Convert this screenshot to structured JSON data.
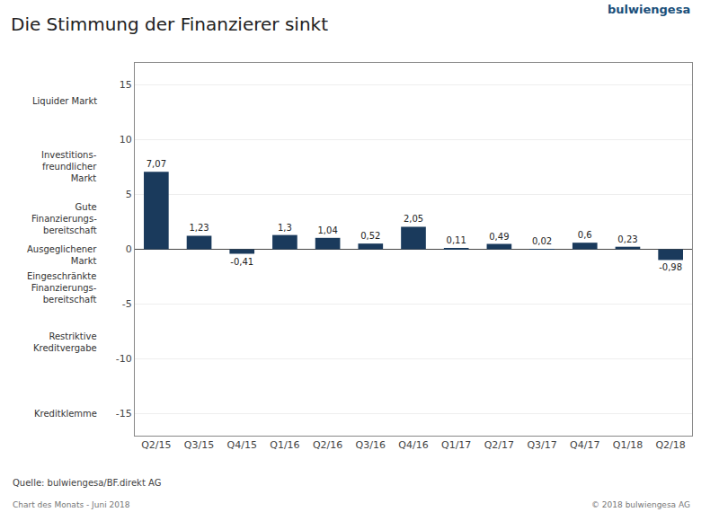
{
  "chart_data": {
    "type": "bar",
    "title": "Die Stimmung der Finanzierer sinkt",
    "categories": [
      "Q2/15",
      "Q3/15",
      "Q4/15",
      "Q1/16",
      "Q2/16",
      "Q3/16",
      "Q4/16",
      "Q1/17",
      "Q2/17",
      "Q3/17",
      "Q4/17",
      "Q1/18",
      "Q2/18"
    ],
    "values": [
      7.07,
      1.23,
      -0.41,
      1.3,
      1.04,
      0.52,
      2.05,
      0.11,
      0.49,
      0.02,
      0.6,
      0.23,
      -0.98
    ],
    "value_labels": [
      "7,07",
      "1,23",
      "-0,41",
      "1,3",
      "1,04",
      "0,52",
      "2,05",
      "0,11",
      "0,49",
      "0,02",
      "0,6",
      "0,23",
      "-0,98"
    ],
    "data_labels": true,
    "color": "#1a3a5c",
    "ylim": [
      -17,
      17
    ],
    "yticks": [
      -15,
      -10,
      -5,
      0,
      5,
      10,
      15
    ],
    "grid": true,
    "annotations": [
      {
        "text": "Liquider Markt",
        "y": 13.5
      },
      {
        "text": "Investitions-\nfreundlicher\nMarkt",
        "y": 7.5
      },
      {
        "text": "Gute\nFinanzierungs-\nbereitschaft",
        "y": 2.8
      },
      {
        "text": "Ausgeglichener\nMarkt",
        "y": -0.5
      },
      {
        "text": "Eingeschränkte\nFinanzierungs-\nbereitschaft",
        "y": -3.5
      },
      {
        "text": "Restriktive\nKreditvergabe",
        "y": -8.5
      },
      {
        "text": "Kreditklemme",
        "y": -15.0
      },
      {
        "text": "bulwiengesa"
      },
      {
        "text": "Quelle: bulwiengesa/BF.direkt AG"
      },
      {
        "text": "Chart des Monats - Juni 2018"
      },
      {
        "text": "© 2018 bulwiengesa AG"
      }
    ]
  }
}
